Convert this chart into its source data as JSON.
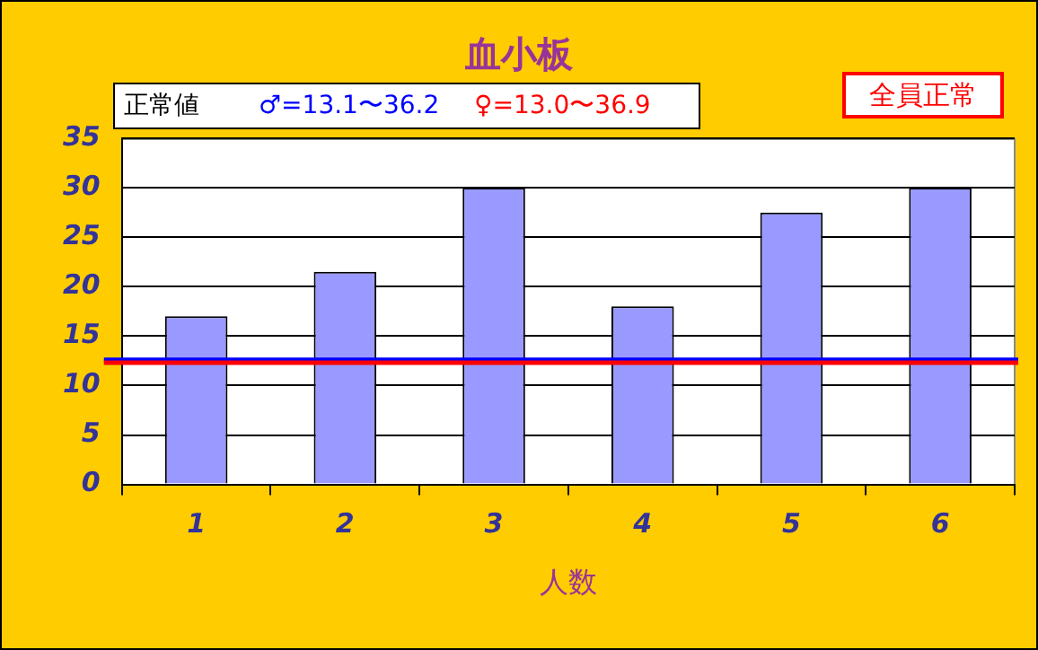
{
  "chart_data": {
    "type": "bar",
    "title": "血小板",
    "xlabel": "人数",
    "categories": [
      "1",
      "2",
      "3",
      "4",
      "5",
      "6"
    ],
    "values": [
      17,
      21.5,
      30,
      18,
      27.5,
      30
    ],
    "color": "#9999ff",
    "ylim": [
      0,
      35
    ],
    "yticks": [
      0,
      5,
      10,
      15,
      20,
      25,
      30,
      35
    ],
    "grid": "y",
    "legend": false,
    "ref_lines": [
      {
        "axis": "y",
        "value": 12.6,
        "color": "#0000ff"
      },
      {
        "axis": "y",
        "value": 12.3,
        "color": "#ff0000"
      }
    ],
    "annotations": [
      "正常値",
      "♂=13.1〜36.2",
      "♀=13.0〜36.9",
      "全員正常"
    ]
  }
}
